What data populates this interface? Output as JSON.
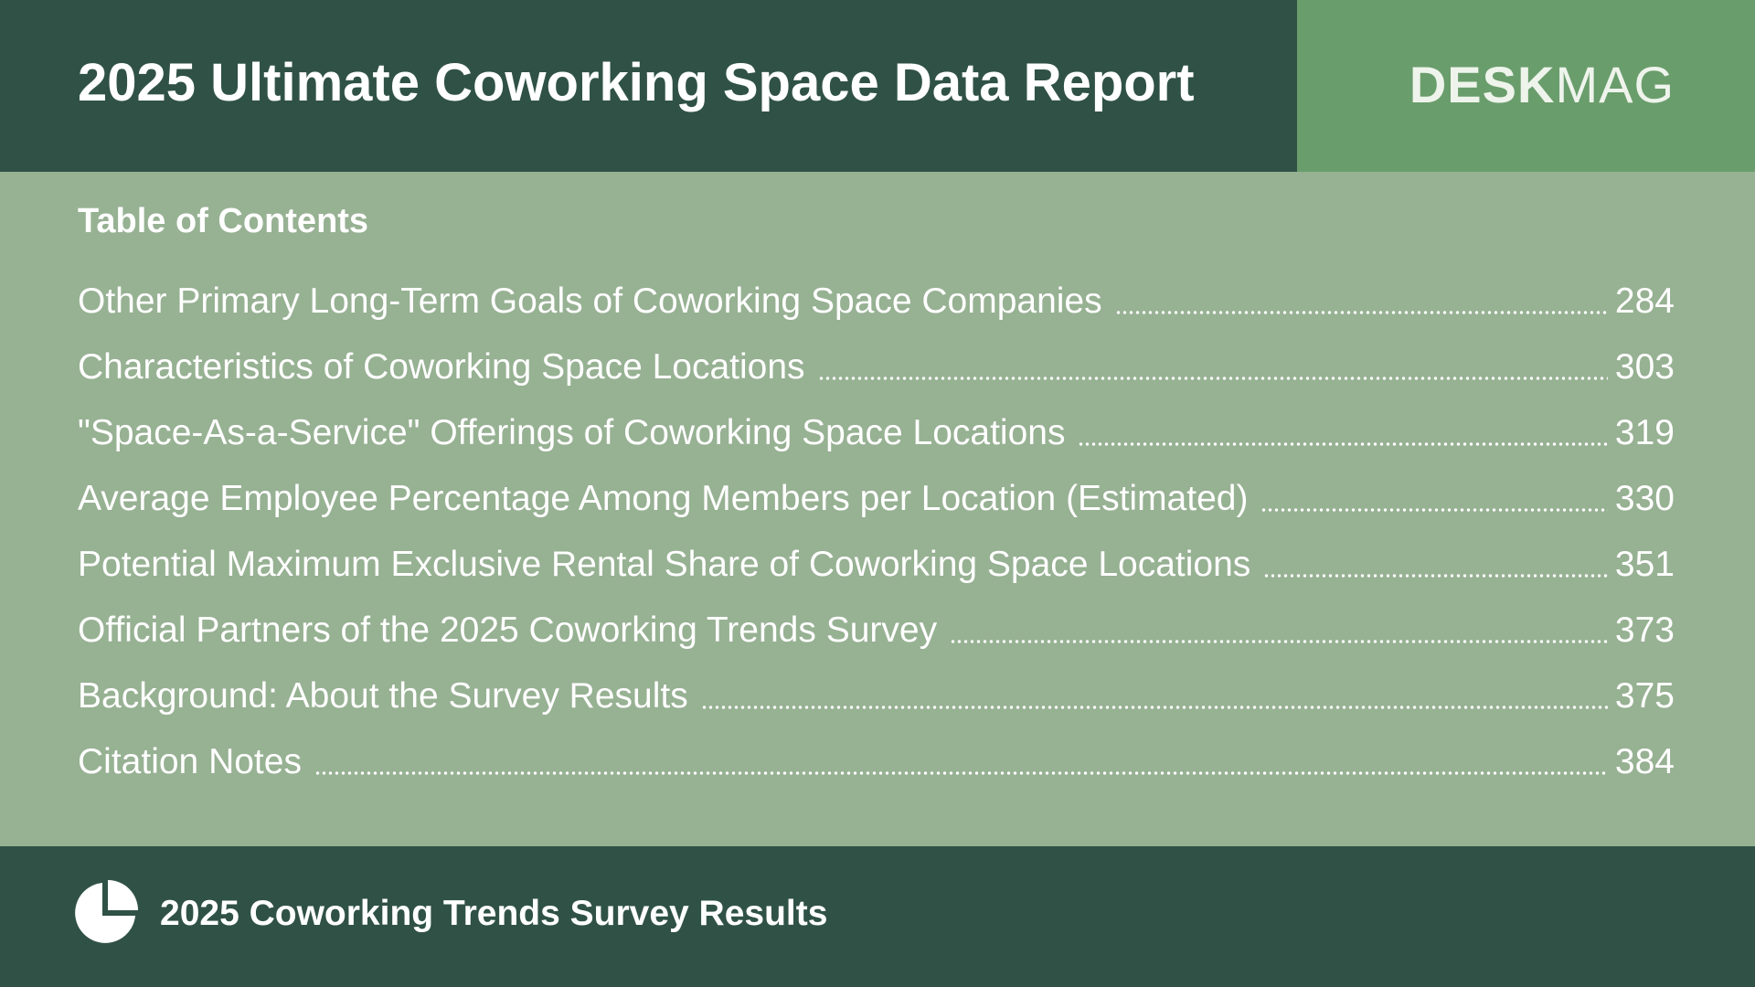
{
  "header": {
    "title": "2025 Ultimate Coworking Space Data Report",
    "brand_bold": "DESK",
    "brand_light": "MAG"
  },
  "toc": {
    "heading": "Table of Contents",
    "entries": [
      {
        "label": "Other Primary Long-Term Goals of Coworking Space Companies",
        "page": "284"
      },
      {
        "label": "Characteristics of Coworking Space Locations",
        "page": "303"
      },
      {
        "label": "\"Space-As-a-Service\" Offerings of Coworking Space Locations",
        "page": "319"
      },
      {
        "label": "Average Employee Percentage Among Members per Location (Estimated)",
        "page": "330"
      },
      {
        "label": "Potential Maximum Exclusive Rental Share of Coworking Space Locations",
        "page": "351"
      },
      {
        "label": "Official Partners of the 2025 Coworking Trends Survey",
        "page": "373"
      },
      {
        "label": "Background: About the Survey Results",
        "page": "375"
      },
      {
        "label": "Citation Notes",
        "page": "384"
      }
    ]
  },
  "footer": {
    "icon": "pie-chart-icon",
    "text": "2025 Coworking Trends Survey Results"
  },
  "colors": {
    "dark_green": "#305246",
    "brand_green": "#6a9d6c",
    "sage_background": "#97b193",
    "text": "#ffffff"
  }
}
